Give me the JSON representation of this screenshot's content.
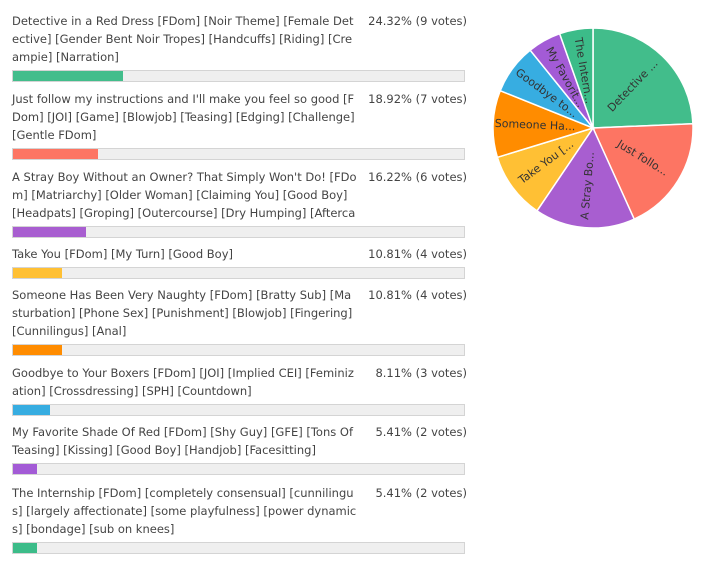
{
  "chart_data": {
    "type": "pie",
    "options": [
      {
        "text": "Detective in a Red Dress [FDom] [Noir Theme] [Female Detective] [Gender Bent Noir Tropes] [Handcuffs] [Riding] [Creampie] [Narration]",
        "percent": 24.32,
        "votes": 9,
        "result": "24.32% (9 votes)",
        "short": "Detective ...",
        "color": "#42bd8b"
      },
      {
        "text": "Just follow my instructions and I'll make you feel so good [FDom] [JOI] [Game] [Blowjob] [Teasing] [Edging] [Challenge] [Gentle FDom]",
        "percent": 18.92,
        "votes": 7,
        "result": "18.92% (7 votes)",
        "short": "Just follo...",
        "color": "#fd7563"
      },
      {
        "text": "A Stray Boy Without an Owner? That Simply Won't Do! [FDom] [Matriarchy] [Older Woman] [Claiming You] [Good Boy] [Headpats] [Groping] [Outercourse] [Dry Humping] [Aftercare]",
        "percent": 16.22,
        "votes": 6,
        "result": "16.22% (6 votes)",
        "short": "A Stray Bo...",
        "color": "#a85ed0"
      },
      {
        "text": "Take You [FDom] [My Turn] [Good Boy]",
        "percent": 10.81,
        "votes": 4,
        "result": "10.81% (4 votes)",
        "short": "Take You [...",
        "color": "#ffc034"
      },
      {
        "text": "Someone Has Been Very Naughty [FDom] [Bratty Sub] [Masturbation] [Phone Sex] [Punishment] [Blowjob] [Fingering] [Cunnilingus] [Anal]",
        "percent": 10.81,
        "votes": 4,
        "result": "10.81% (4 votes)",
        "short": "Someone Ha...",
        "color": "#ff8c00"
      },
      {
        "text": "Goodbye to Your Boxers [FDom] [JOI] [Implied CEI] [Feminization] [Crossdressing] [SPH] [Countdown]",
        "percent": 8.11,
        "votes": 3,
        "result": "8.11% (3 votes)",
        "short": "Goodbye to...",
        "color": "#37ade1"
      },
      {
        "text": "My Favorite Shade Of Red [FDom] [Shy Guy] [GFE] [Tons Of Teasing] [Kissing] [Good Boy] [Handjob] [Facesitting]",
        "percent": 5.41,
        "votes": 2,
        "result": "5.41% (2 votes)",
        "short": "My Favorit...",
        "color": "#a35bd6"
      },
      {
        "text": "The Internship [FDom] [completely consensual] [cunnilingus] [largely affectionate] [some playfulness] [power dynamics] [bondage] [sub on knees]",
        "percent": 5.41,
        "votes": 2,
        "result": "5.41% (2 votes)",
        "short": "The Intern...",
        "color": "#3cbc89"
      }
    ]
  }
}
